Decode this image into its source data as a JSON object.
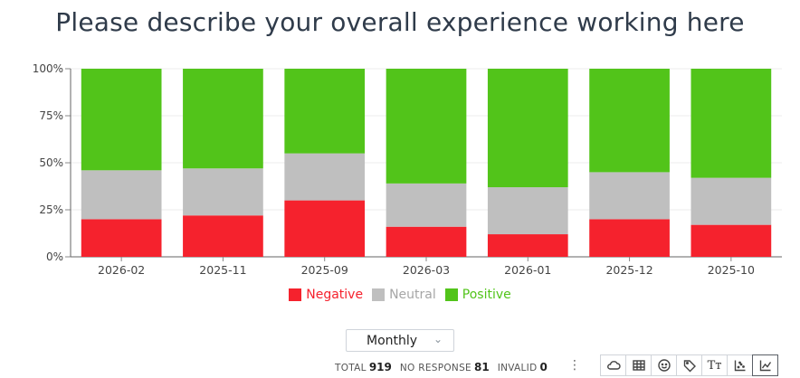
{
  "title": "Please describe your overall experience working here",
  "chart_data": {
    "type": "bar",
    "stacked": true,
    "categories": [
      "2026-02",
      "2025-11",
      "2025-09",
      "2026-03",
      "2026-01",
      "2025-12",
      "2025-10"
    ],
    "series": [
      {
        "name": "Negative",
        "color": "#f5222d",
        "values": [
          20,
          22,
          30,
          16,
          12,
          20,
          17
        ]
      },
      {
        "name": "Neutral",
        "color": "#bfbfbf",
        "values": [
          26,
          25,
          25,
          23,
          25,
          25,
          25
        ]
      },
      {
        "name": "Positive",
        "color": "#52c41a",
        "values": [
          54,
          53,
          45,
          61,
          63,
          55,
          58
        ]
      }
    ],
    "yticks": [
      "0%",
      "25%",
      "50%",
      "75%",
      "100%"
    ],
    "ylim": [
      0,
      100
    ],
    "grid": true,
    "legend_position": "bottom"
  },
  "controls": {
    "period": "Monthly"
  },
  "stats": {
    "total_label": "TOTAL",
    "total_value": "919",
    "no_response_label": "NO RESPONSE",
    "no_response_value": "81",
    "invalid_label": "INVALID",
    "invalid_value": "0"
  },
  "toolbar": {
    "icons": [
      "cloud-icon",
      "table-icon",
      "smiley-icon",
      "tag-icon",
      "text-size-icon",
      "scatter-chart-icon",
      "line-chart-icon"
    ],
    "text_size_glyph": "Tт"
  }
}
